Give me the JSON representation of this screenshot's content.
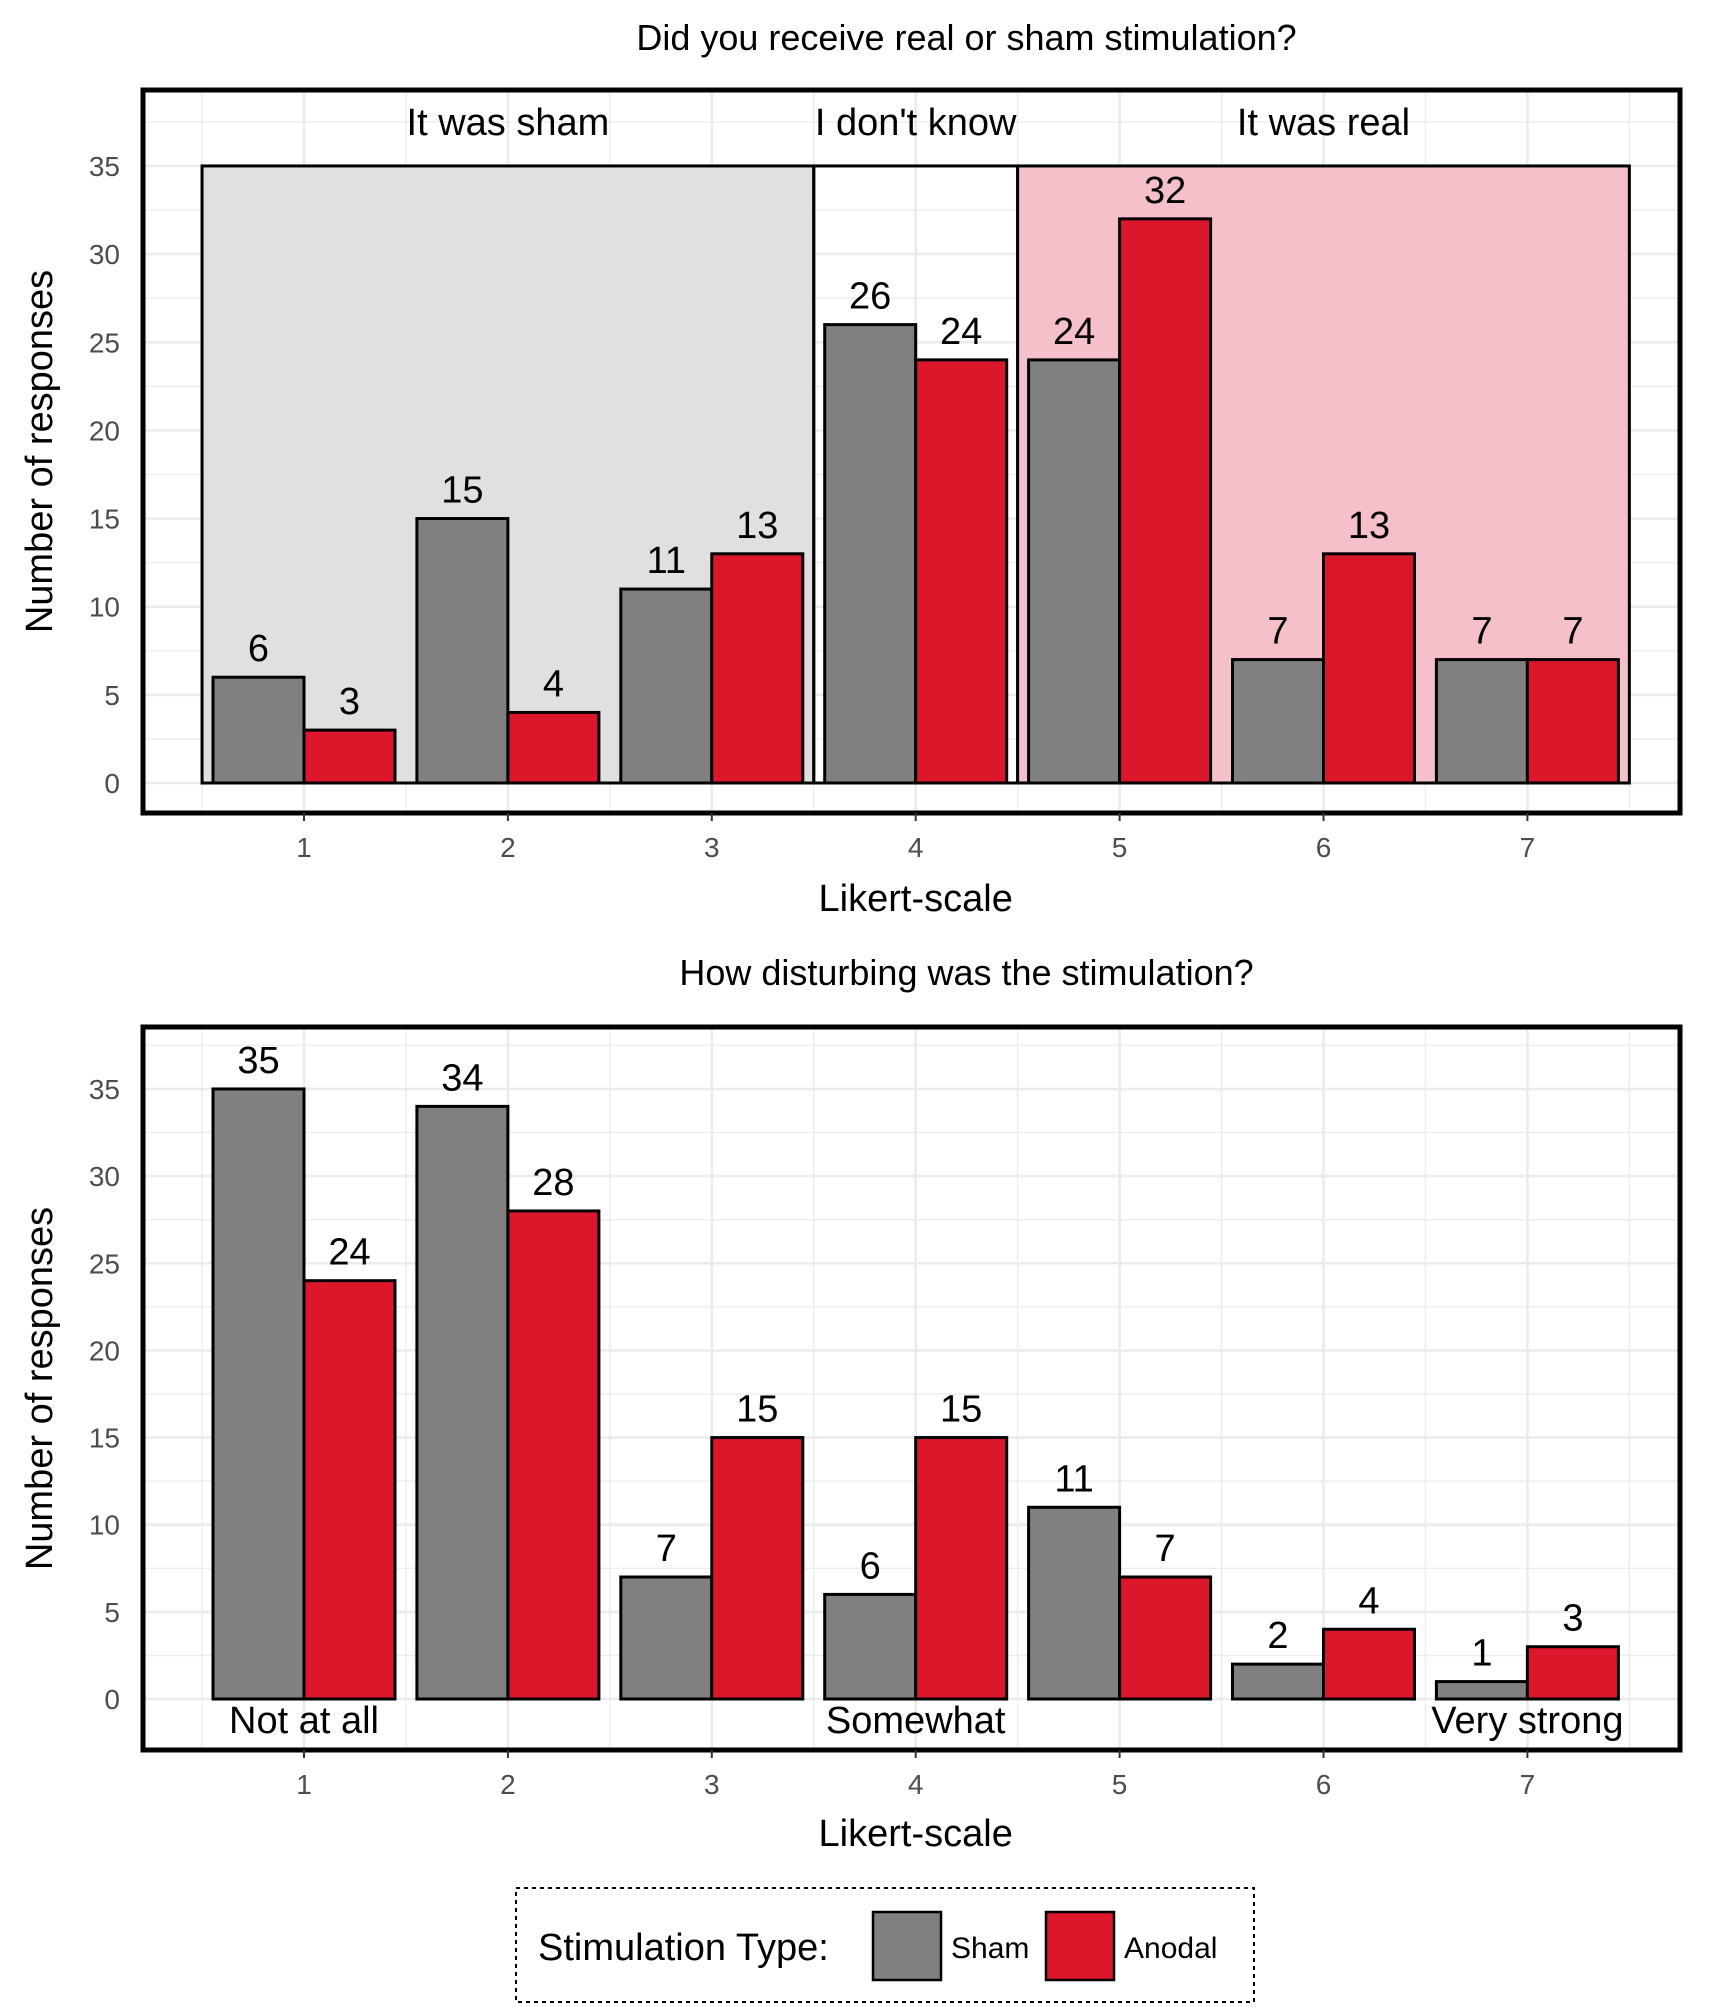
{
  "colors": {
    "sham": "#808080",
    "anodal": "#dc172c",
    "sham_region": "#e0e0e0",
    "real_region": "#f5c0ca"
  },
  "chart_data": [
    {
      "type": "bar",
      "title": "Did you receive real or sham stimulation?",
      "xlabel": "Likert-scale",
      "ylabel": "Number of responses",
      "categories": [
        "1",
        "2",
        "3",
        "4",
        "5",
        "6",
        "7"
      ],
      "ylim": [
        0,
        38
      ],
      "yticks": [
        0,
        5,
        10,
        15,
        20,
        25,
        30,
        35
      ],
      "grid": true,
      "series": [
        {
          "name": "Sham",
          "values": [
            6,
            15,
            11,
            26,
            24,
            7,
            7
          ]
        },
        {
          "name": "Anodal",
          "values": [
            3,
            4,
            13,
            24,
            32,
            13,
            7
          ]
        }
      ],
      "regions": [
        {
          "label": "It was sham",
          "from": 0.5,
          "to": 3.5,
          "top": 35,
          "color": "sham_region"
        },
        {
          "label": "I don't know",
          "from": 3.5,
          "to": 4.5,
          "top": 35,
          "color": "none"
        },
        {
          "label": "It was real",
          "from": 4.5,
          "to": 7.5,
          "top": 35,
          "color": "real_region"
        }
      ],
      "annotations": []
    },
    {
      "type": "bar",
      "title": "How disturbing was the stimulation?",
      "xlabel": "Likert-scale",
      "ylabel": "Number of responses",
      "categories": [
        "1",
        "2",
        "3",
        "4",
        "5",
        "6",
        "7"
      ],
      "ylim": [
        0,
        38
      ],
      "yticks": [
        0,
        5,
        10,
        15,
        20,
        25,
        30,
        35
      ],
      "grid": true,
      "series": [
        {
          "name": "Sham",
          "values": [
            35,
            34,
            7,
            6,
            11,
            2,
            1
          ]
        },
        {
          "name": "Anodal",
          "values": [
            24,
            28,
            15,
            15,
            7,
            4,
            3
          ]
        }
      ],
      "regions": [],
      "annotations": [
        {
          "text": "Not at all",
          "x": 1
        },
        {
          "text": "Somewhat",
          "x": 4
        },
        {
          "text": "Very strong",
          "x": 7
        }
      ]
    }
  ],
  "legend": {
    "title": "Stimulation Type:",
    "items": [
      {
        "label": "Sham",
        "color": "sham"
      },
      {
        "label": "Anodal",
        "color": "anodal"
      }
    ]
  }
}
